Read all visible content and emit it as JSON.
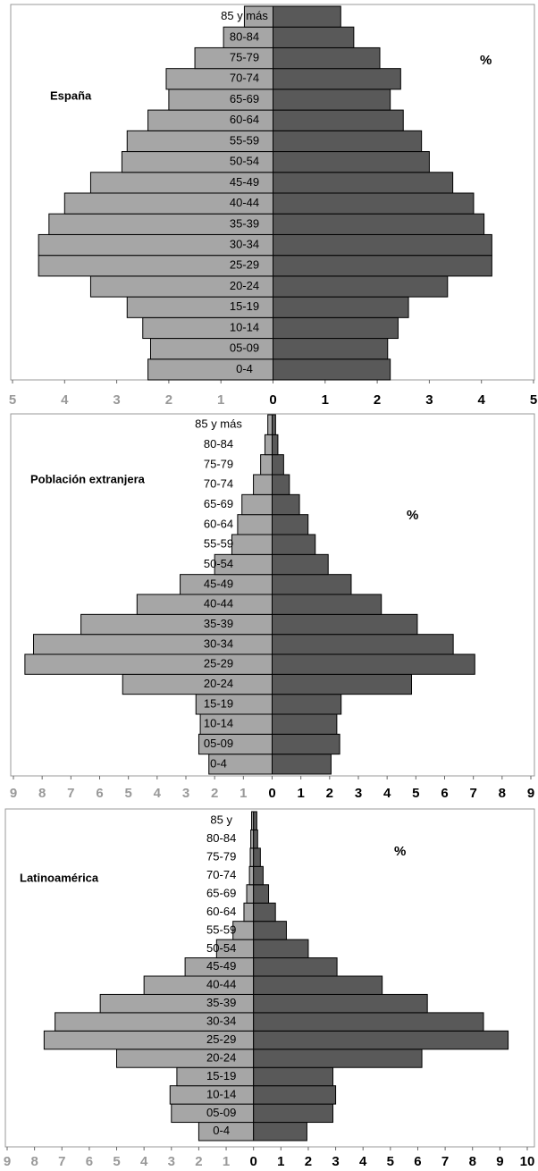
{
  "chart_data": [
    {
      "type": "pyramid",
      "title": "España",
      "annotation": "%",
      "categories": [
        "0-4",
        "05-09",
        "10-14",
        "15-19",
        "20-24",
        "25-29",
        "30-34",
        "35-39",
        "40-44",
        "45-49",
        "50-54",
        "55-59",
        "60-64",
        "65-69",
        "70-74",
        "75-79",
        "80-84",
        "85 y más"
      ],
      "series": [
        {
          "color": "#a6a6a6",
          "side": "left",
          "values": [
            2.4,
            2.35,
            2.5,
            2.8,
            3.5,
            4.5,
            4.5,
            4.3,
            4.0,
            3.5,
            2.9,
            2.8,
            2.4,
            2.0,
            2.05,
            1.5,
            0.95,
            0.55
          ]
        },
        {
          "color": "#595959",
          "side": "right",
          "values": [
            2.25,
            2.2,
            2.4,
            2.6,
            3.35,
            4.2,
            4.2,
            4.05,
            3.85,
            3.45,
            3.0,
            2.85,
            2.5,
            2.25,
            2.45,
            2.05,
            1.55,
            1.3
          ]
        }
      ],
      "xlim": [
        -5,
        5
      ],
      "xticks": [
        {
          "value": -5,
          "label": "5"
        },
        {
          "value": -4,
          "label": "4"
        },
        {
          "value": -3,
          "label": "3"
        },
        {
          "value": -2,
          "label": "2"
        },
        {
          "value": -1,
          "label": "1"
        },
        0,
        1,
        2,
        3,
        4,
        5
      ]
    },
    {
      "type": "pyramid",
      "title": "Población extranjera",
      "annotation": "%",
      "categories": [
        "0-4",
        "05-09",
        "10-14",
        "15-19",
        "20-24",
        "25-29",
        "30-34",
        "35-39",
        "40-44",
        "45-49",
        "50-54",
        "55-59",
        "60-64",
        "65-69",
        "70-74",
        "75-79",
        "80-84",
        "85 y más"
      ],
      "series": [
        {
          "color": "#a6a6a6",
          "side": "left",
          "values": [
            2.2,
            2.55,
            2.5,
            2.65,
            5.2,
            8.6,
            8.3,
            6.65,
            4.7,
            3.2,
            2.0,
            1.4,
            1.2,
            1.05,
            0.65,
            0.4,
            0.25,
            0.15
          ]
        },
        {
          "color": "#595959",
          "side": "right",
          "values": [
            2.05,
            2.35,
            2.25,
            2.4,
            4.85,
            7.05,
            6.3,
            5.05,
            3.8,
            2.75,
            1.95,
            1.5,
            1.25,
            0.95,
            0.6,
            0.4,
            0.2,
            0.12
          ]
        }
      ],
      "xlim": [
        -9,
        9
      ],
      "xticks": [
        {
          "value": -9,
          "label": "9"
        },
        {
          "value": -8,
          "label": "8"
        },
        {
          "value": -7,
          "label": "7"
        },
        {
          "value": -6,
          "label": "6"
        },
        {
          "value": -5,
          "label": "5"
        },
        {
          "value": -4,
          "label": "4"
        },
        {
          "value": -3,
          "label": "3"
        },
        {
          "value": -2,
          "label": "2"
        },
        {
          "value": -1,
          "label": "1"
        },
        0,
        1,
        2,
        3,
        4,
        5,
        6,
        7,
        8,
        9
      ]
    },
    {
      "type": "pyramid",
      "title": "Latinoamérica",
      "annotation": "%",
      "categories": [
        "0-4",
        "05-09",
        "10-14",
        "15-19",
        "20-24",
        "25-29",
        "30-34",
        "35-39",
        "40-44",
        "45-49",
        "50-54",
        "55-59",
        "60-64",
        "65-69",
        "70-74",
        "75-79",
        "80-84",
        "85 y"
      ],
      "series": [
        {
          "color": "#a6a6a6",
          "side": "left",
          "values": [
            2.0,
            3.0,
            3.05,
            2.8,
            5.0,
            7.65,
            7.25,
            5.6,
            4.0,
            2.5,
            1.35,
            0.75,
            0.35,
            0.25,
            0.15,
            0.12,
            0.1,
            0.07
          ]
        },
        {
          "color": "#595959",
          "side": "right",
          "values": [
            1.95,
            2.9,
            3.0,
            2.9,
            6.15,
            9.3,
            8.4,
            6.35,
            4.7,
            3.05,
            2.0,
            1.2,
            0.8,
            0.55,
            0.35,
            0.25,
            0.15,
            0.12
          ]
        }
      ],
      "xlim": [
        -9,
        10
      ],
      "xticks": [
        {
          "value": -9,
          "label": "9"
        },
        {
          "value": -8,
          "label": "8"
        },
        {
          "value": -7,
          "label": "7"
        },
        {
          "value": -6,
          "label": "6"
        },
        {
          "value": -5,
          "label": "5"
        },
        {
          "value": -4,
          "label": "4"
        },
        {
          "value": -3,
          "label": "3"
        },
        {
          "value": -2,
          "label": "2"
        },
        {
          "value": -1,
          "label": "1"
        },
        0,
        1,
        2,
        3,
        4,
        5,
        6,
        7,
        8,
        9,
        10
      ]
    }
  ]
}
